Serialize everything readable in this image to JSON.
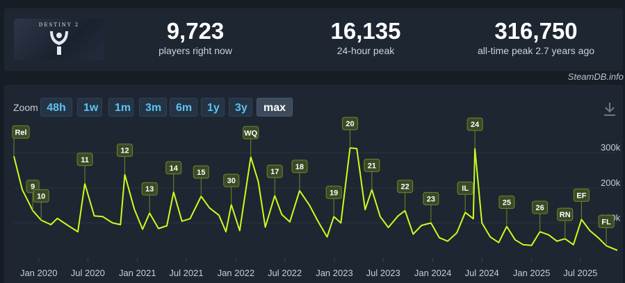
{
  "header": {
    "logo_text": "DESTINY 2",
    "stats": [
      {
        "value": "9,723",
        "label": "players right now"
      },
      {
        "value": "16,135",
        "label": "24-hour peak"
      },
      {
        "value": "316,750",
        "label": "all-time peak 2.7 years ago"
      }
    ],
    "credit": "SteamDB.info"
  },
  "zoom": {
    "label": "Zoom",
    "buttons": [
      "48h",
      "1w",
      "1m",
      "3m",
      "6m",
      "1y",
      "3y",
      "max"
    ],
    "active": "max"
  },
  "colors": {
    "line": "#c8ff1e",
    "marker_fill": "#3b4a26",
    "marker_border": "#6d8a2c",
    "grid": "#2b3440",
    "active_button": "#3c4b5c",
    "button_text": "#5cc2ee"
  },
  "icons": [
    "destiny-logo-icon",
    "download-icon"
  ],
  "chart_data": {
    "type": "line",
    "x_tick_labels": [
      "Jan 2020",
      "Jul 2020",
      "Jan 2021",
      "Jul 2021",
      "Jan 2022",
      "Jul 2022",
      "Jan 2023",
      "Jul 2023",
      "Jan 2024",
      "Jul 2024",
      "Jan 2025",
      "Jul 2025"
    ],
    "x_tick_dates": [
      "2020-01-01",
      "2020-07-01",
      "2021-01-01",
      "2021-07-01",
      "2022-01-01",
      "2022-07-01",
      "2023-01-01",
      "2023-07-01",
      "2024-01-01",
      "2024-07-01",
      "2025-01-01",
      "2025-07-01"
    ],
    "xlim": [
      "2019-10-01",
      "2025-11-15"
    ],
    "y_tick_values": [
      100000,
      200000,
      300000
    ],
    "y_tick_labels": [
      "100k",
      "200k",
      "300k"
    ],
    "ylim": [
      0,
      340000
    ],
    "grid": true,
    "series": [
      {
        "points": [
          [
            "2019-10-01",
            290000
          ],
          [
            "2019-11-01",
            195000
          ],
          [
            "2019-12-10",
            135000
          ],
          [
            "2020-01-10",
            108000
          ],
          [
            "2020-02-15",
            95000
          ],
          [
            "2020-03-10",
            113000
          ],
          [
            "2020-04-20",
            92000
          ],
          [
            "2020-05-25",
            75000
          ],
          [
            "2020-06-20",
            212000
          ],
          [
            "2020-07-25",
            120000
          ],
          [
            "2020-08-25",
            118000
          ],
          [
            "2020-10-01",
            100000
          ],
          [
            "2020-10-30",
            95000
          ],
          [
            "2020-11-15",
            238000
          ],
          [
            "2020-12-20",
            140000
          ],
          [
            "2021-01-20",
            82000
          ],
          [
            "2021-02-15",
            128000
          ],
          [
            "2021-03-20",
            84000
          ],
          [
            "2021-04-20",
            92000
          ],
          [
            "2021-05-15",
            188000
          ],
          [
            "2021-06-15",
            105000
          ],
          [
            "2021-07-15",
            112000
          ],
          [
            "2021-08-25",
            176000
          ],
          [
            "2021-09-25",
            143000
          ],
          [
            "2021-10-30",
            122000
          ],
          [
            "2021-11-25",
            75000
          ],
          [
            "2021-12-15",
            152000
          ],
          [
            "2022-01-15",
            78000
          ],
          [
            "2022-02-25",
            288000
          ],
          [
            "2022-03-25",
            218000
          ],
          [
            "2022-04-20",
            88000
          ],
          [
            "2022-05-25",
            178000
          ],
          [
            "2022-06-20",
            124000
          ],
          [
            "2022-07-20",
            103000
          ],
          [
            "2022-08-25",
            192000
          ],
          [
            "2022-10-01",
            150000
          ],
          [
            "2022-11-01",
            105000
          ],
          [
            "2022-12-05",
            60000
          ],
          [
            "2022-12-30",
            118000
          ],
          [
            "2023-01-25",
            100000
          ],
          [
            "2023-02-28",
            314000
          ],
          [
            "2023-03-25",
            312000
          ],
          [
            "2023-04-25",
            138000
          ],
          [
            "2023-05-20",
            195000
          ],
          [
            "2023-06-20",
            118000
          ],
          [
            "2023-07-20",
            87000
          ],
          [
            "2023-08-25",
            120000
          ],
          [
            "2023-09-20",
            135000
          ],
          [
            "2023-10-20",
            68000
          ],
          [
            "2023-11-20",
            93000
          ],
          [
            "2023-12-25",
            100000
          ],
          [
            "2024-01-25",
            58000
          ],
          [
            "2024-02-25",
            48000
          ],
          [
            "2024-03-30",
            72000
          ],
          [
            "2024-04-30",
            130000
          ],
          [
            "2024-05-30",
            112000
          ],
          [
            "2024-06-05",
            312000
          ],
          [
            "2024-07-01",
            100000
          ],
          [
            "2024-08-01",
            60000
          ],
          [
            "2024-09-01",
            44000
          ],
          [
            "2024-10-01",
            90000
          ],
          [
            "2024-11-01",
            52000
          ],
          [
            "2024-12-01",
            38000
          ],
          [
            "2025-01-01",
            36000
          ],
          [
            "2025-02-01",
            75000
          ],
          [
            "2025-03-05",
            66000
          ],
          [
            "2025-04-05",
            48000
          ],
          [
            "2025-05-05",
            55000
          ],
          [
            "2025-06-05",
            38000
          ],
          [
            "2025-07-05",
            110000
          ],
          [
            "2025-08-05",
            78000
          ],
          [
            "2025-09-05",
            58000
          ],
          [
            "2025-10-05",
            35000
          ],
          [
            "2025-11-15",
            22000
          ]
        ]
      }
    ],
    "annotations": [
      {
        "label": "Rel",
        "date": "2019-10-01",
        "value": 290000
      },
      {
        "label": "9",
        "date": "2019-12-10",
        "value": 135000
      },
      {
        "label": "10",
        "date": "2020-01-10",
        "value": 108000
      },
      {
        "label": "11",
        "date": "2020-06-20",
        "value": 212000
      },
      {
        "label": "12",
        "date": "2020-11-15",
        "value": 238000
      },
      {
        "label": "13",
        "date": "2021-02-15",
        "value": 128000
      },
      {
        "label": "14",
        "date": "2021-05-15",
        "value": 188000
      },
      {
        "label": "15",
        "date": "2021-08-25",
        "value": 176000
      },
      {
        "label": "30",
        "date": "2021-12-15",
        "value": 152000
      },
      {
        "label": "WQ",
        "date": "2022-02-25",
        "value": 288000
      },
      {
        "label": "17",
        "date": "2022-05-25",
        "value": 178000
      },
      {
        "label": "18",
        "date": "2022-08-25",
        "value": 192000
      },
      {
        "label": "19",
        "date": "2022-12-30",
        "value": 118000
      },
      {
        "label": "20",
        "date": "2023-02-28",
        "value": 314000
      },
      {
        "label": "21",
        "date": "2023-05-20",
        "value": 195000
      },
      {
        "label": "22",
        "date": "2023-09-20",
        "value": 135000
      },
      {
        "label": "23",
        "date": "2023-12-25",
        "value": 100000
      },
      {
        "label": "IL",
        "date": "2024-04-30",
        "value": 130000
      },
      {
        "label": "24",
        "date": "2024-06-05",
        "value": 312000
      },
      {
        "label": "25",
        "date": "2024-10-01",
        "value": 90000
      },
      {
        "label": "26",
        "date": "2025-02-01",
        "value": 75000
      },
      {
        "label": "RN",
        "date": "2025-05-05",
        "value": 55000
      },
      {
        "label": "EF",
        "date": "2025-07-05",
        "value": 110000
      },
      {
        "label": "FL",
        "date": "2025-10-05",
        "value": 35000
      }
    ]
  }
}
